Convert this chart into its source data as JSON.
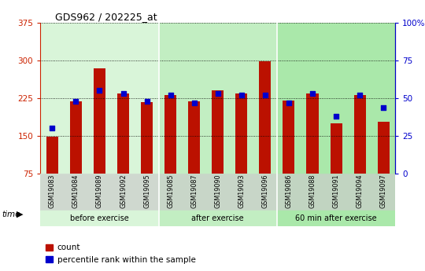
{
  "title": "GDS962 / 202225_at",
  "samples": [
    "GSM19083",
    "GSM19084",
    "GSM19089",
    "GSM19092",
    "GSM19095",
    "GSM19085",
    "GSM19087",
    "GSM19090",
    "GSM19093",
    "GSM19096",
    "GSM19086",
    "GSM19088",
    "GSM19091",
    "GSM19094",
    "GSM19097"
  ],
  "counts": [
    148,
    219,
    284,
    234,
    217,
    231,
    219,
    240,
    235,
    298,
    220,
    234,
    175,
    232,
    178
  ],
  "percentiles": [
    30,
    48,
    55,
    53,
    48,
    52,
    47,
    53,
    52,
    52,
    47,
    53,
    38,
    52,
    44
  ],
  "groups": [
    {
      "label": "before exercise",
      "start": 0,
      "end": 5,
      "color": "#d9f5d9"
    },
    {
      "label": "after exercise",
      "start": 5,
      "end": 10,
      "color": "#c2eec2"
    },
    {
      "label": "60 min after exercise",
      "start": 10,
      "end": 15,
      "color": "#aae8aa"
    }
  ],
  "bar_color": "#bb1100",
  "percentile_color": "#0000cc",
  "left_axis_color": "#cc2200",
  "right_axis_color": "#0000cc",
  "ylim_left": [
    75,
    375
  ],
  "ylim_right": [
    0,
    100
  ],
  "yticks_left": [
    75,
    150,
    225,
    300,
    375
  ],
  "yticks_right": [
    0,
    25,
    50,
    75,
    100
  ],
  "ytick_labels_right": [
    "0",
    "25",
    "50",
    "75",
    "100%"
  ],
  "grid_color": "black",
  "bg_color": "#ffffff",
  "bar_width": 0.5,
  "legend_count_label": "count",
  "legend_percentile_label": "percentile rank within the sample",
  "label_bg_color": "#cccccc"
}
